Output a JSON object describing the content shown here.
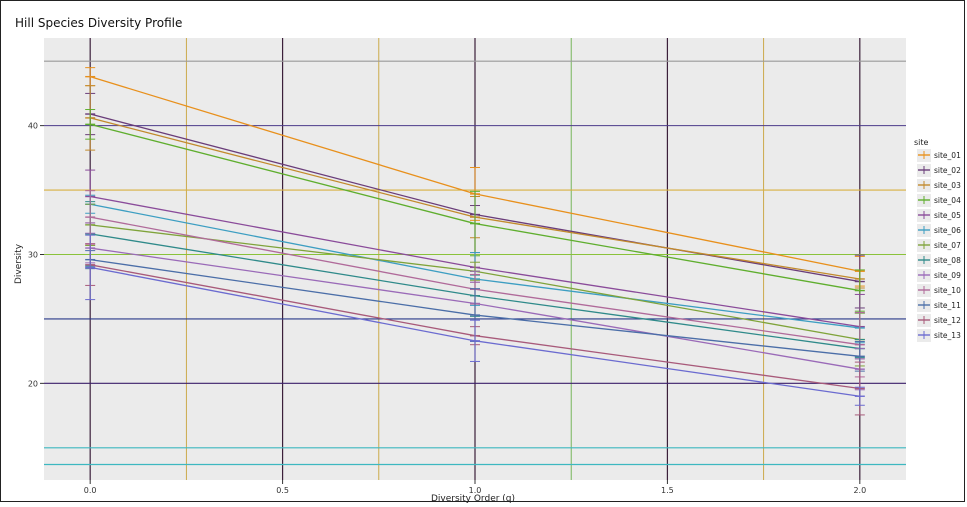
{
  "chart_data": {
    "type": "line",
    "title": "Hill Species Diversity Profile",
    "xlabel": "Diversity Order (q)",
    "ylabel": "Diversity",
    "x": [
      0,
      1,
      2
    ],
    "x_ticks": [
      "0.0",
      "0.5",
      "1.0",
      "1.5",
      "2.0"
    ],
    "y_ticks": [
      "20",
      "30",
      "40"
    ],
    "xlim": [
      -0.12,
      2.12
    ],
    "ylim": [
      12.5,
      46.8
    ],
    "grid": true,
    "legend_title": "site",
    "legend_position": "right",
    "series": [
      {
        "name": "site_01",
        "color": "#e8901c",
        "values": [
          43.8,
          34.7,
          28.7
        ]
      },
      {
        "name": "site_02",
        "color": "#6a3d7a",
        "values": [
          40.9,
          33.1,
          27.9
        ]
      },
      {
        "name": "site_03",
        "color": "#c28a2c",
        "values": [
          40.6,
          32.9,
          28.1
        ]
      },
      {
        "name": "site_04",
        "color": "#5fae2e",
        "values": [
          40.1,
          32.4,
          27.2
        ]
      },
      {
        "name": "site_05",
        "color": "#8a4b9a",
        "values": [
          34.5,
          29.0,
          24.4
        ]
      },
      {
        "name": "site_06",
        "color": "#3d9ec2",
        "values": [
          33.9,
          28.1,
          24.3
        ]
      },
      {
        "name": "site_07",
        "color": "#7fa33a",
        "values": [
          32.3,
          28.7,
          23.4
        ]
      },
      {
        "name": "site_08",
        "color": "#2f8a8a",
        "values": [
          31.6,
          26.8,
          22.7
        ]
      },
      {
        "name": "site_09",
        "color": "#9a6ab8",
        "values": [
          30.5,
          26.2,
          21.1
        ]
      },
      {
        "name": "site_10",
        "color": "#b06a9a",
        "values": [
          32.9,
          27.3,
          23.0
        ]
      },
      {
        "name": "site_11",
        "color": "#4b6ea8",
        "values": [
          29.6,
          25.3,
          22.1
        ]
      },
      {
        "name": "site_12",
        "color": "#a85a7a",
        "values": [
          29.2,
          23.7,
          19.6
        ]
      },
      {
        "name": "site_13",
        "color": "#6b6bd0",
        "values": [
          29.0,
          23.3,
          19.0
        ]
      }
    ]
  }
}
